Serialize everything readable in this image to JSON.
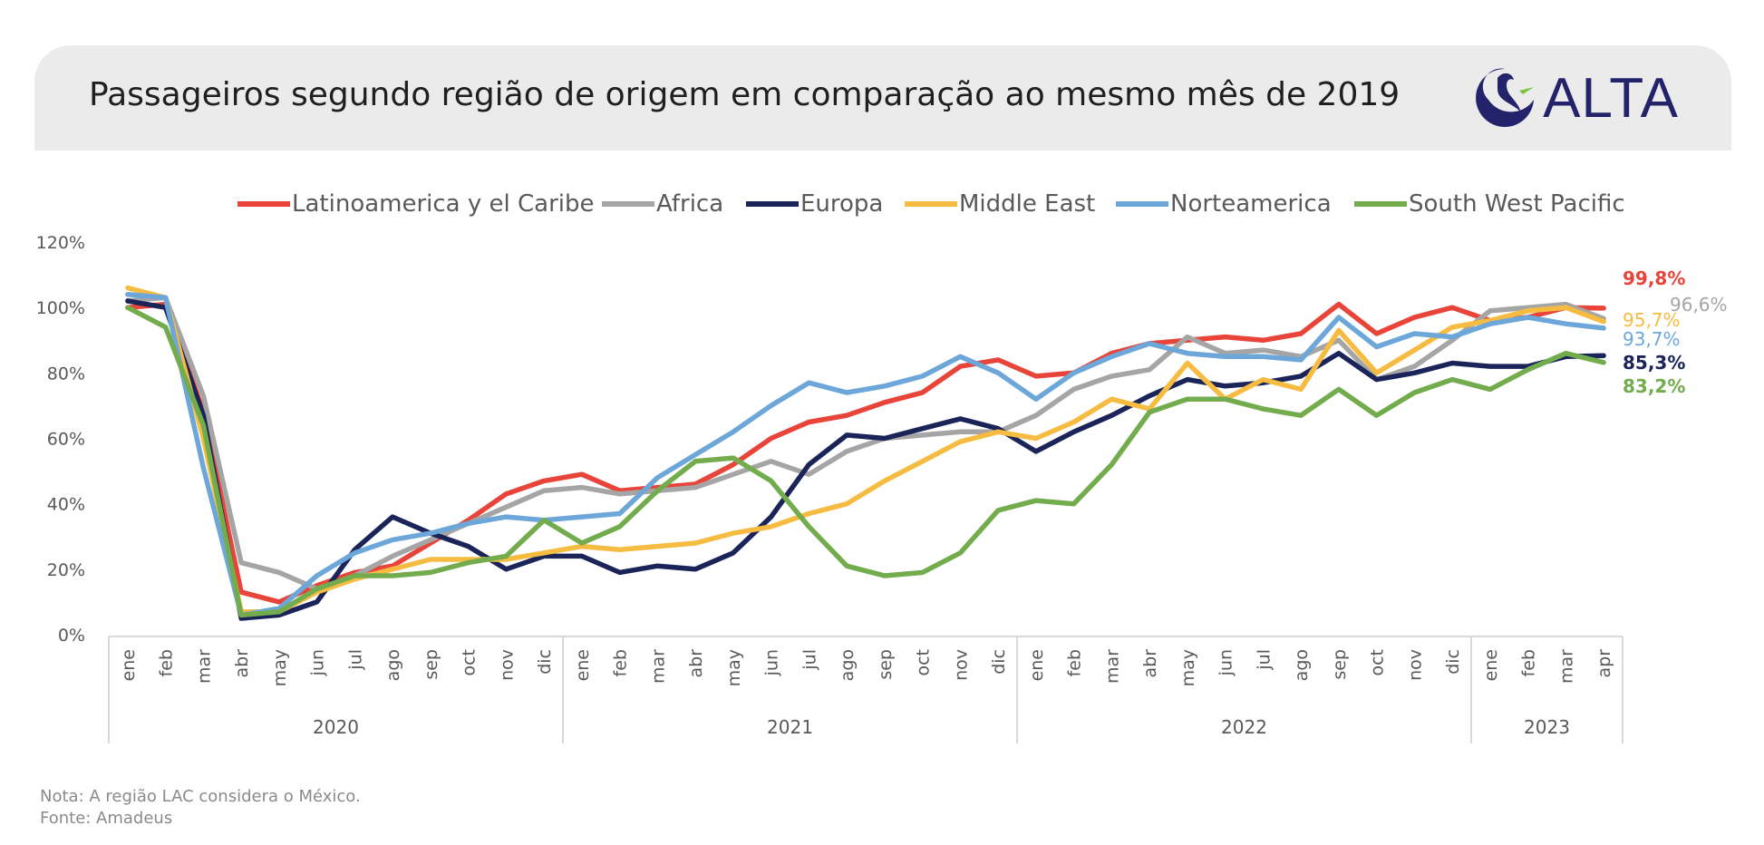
{
  "header": {
    "title": "Passageiros segundo região de origem em comparação ao mesmo mês de 2019",
    "logo_text": "ALTA",
    "logo_color": "#23236b"
  },
  "footer": {
    "note": "Nota: A região LAC considera o México.",
    "source": "Fonte: Amadeus"
  },
  "chart_data": {
    "type": "line",
    "ylim": [
      0,
      120
    ],
    "yticks": [
      "0%",
      "20%",
      "40%",
      "60%",
      "80%",
      "100%",
      "120%"
    ],
    "grid": false,
    "legend_position": "top",
    "categories": [
      "ene",
      "feb",
      "mar",
      "abr",
      "may",
      "jun",
      "jul",
      "ago",
      "sep",
      "oct",
      "nov",
      "dic",
      "ene",
      "feb",
      "mar",
      "abr",
      "may",
      "jun",
      "jul",
      "ago",
      "sep",
      "oct",
      "nov",
      "dic",
      "ene",
      "feb",
      "mar",
      "abr",
      "may",
      "jun",
      "jul",
      "ago",
      "sep",
      "oct",
      "nov",
      "dic",
      "ene",
      "feb",
      "mar",
      "apr"
    ],
    "years": [
      {
        "label": "2020",
        "count": 12
      },
      {
        "label": "2021",
        "count": 12
      },
      {
        "label": "2022",
        "count": 12
      },
      {
        "label": "2023",
        "count": 4
      }
    ],
    "series": [
      {
        "name": "Latinoamerica y el Caribe",
        "color": "#e8443a",
        "end_label": "99,8%",
        "values": [
          100,
          101,
          68,
          13,
          10,
          15,
          19,
          21,
          28,
          35,
          43,
          47,
          49,
          44,
          45,
          46,
          52,
          60,
          65,
          67,
          71,
          74,
          82,
          84,
          79,
          80,
          86,
          89,
          90,
          91,
          90,
          92,
          101,
          92,
          97,
          100,
          96,
          97,
          100,
          99.8
        ]
      },
      {
        "name": "Africa",
        "color": "#a5a5a5",
        "end_label": "96,6%",
        "values": [
          102,
          103,
          73,
          22,
          19,
          14,
          18,
          24,
          29,
          34,
          39,
          44,
          45,
          43,
          44,
          45,
          49,
          53,
          49,
          56,
          60,
          61,
          62,
          62,
          67,
          75,
          79,
          81,
          91,
          86,
          87,
          85,
          90,
          78,
          82,
          90,
          99,
          100,
          101,
          96.6
        ]
      },
      {
        "name": "Europa",
        "color": "#1b2458",
        "end_label": "85,3%",
        "values": [
          102,
          100,
          67,
          5,
          6,
          10,
          26,
          36,
          31,
          27,
          20,
          24,
          24,
          19,
          21,
          20,
          25,
          36,
          52,
          61,
          60,
          63,
          66,
          63,
          56,
          62,
          67,
          73,
          78,
          76,
          77,
          79,
          86,
          78,
          80,
          83,
          82,
          82,
          85,
          85.3
        ]
      },
      {
        "name": "Middle East",
        "color": "#f6bc41",
        "end_label": "95,7%",
        "values": [
          106,
          103,
          60,
          7,
          7,
          13,
          17,
          20,
          23,
          23,
          23,
          25,
          27,
          26,
          27,
          28,
          31,
          33,
          37,
          40,
          47,
          53,
          59,
          62,
          60,
          65,
          72,
          69,
          83,
          72,
          78,
          75,
          93,
          80,
          87,
          94,
          96,
          99,
          100,
          95.7
        ]
      },
      {
        "name": "Norteamerica",
        "color": "#6da7d9",
        "end_label": "93,7%",
        "values": [
          104,
          103,
          51,
          6,
          8,
          18,
          25,
          29,
          31,
          34,
          36,
          35,
          36,
          37,
          48,
          55,
          62,
          70,
          77,
          74,
          76,
          79,
          85,
          80,
          72,
          80,
          85,
          89,
          86,
          85,
          85,
          84,
          97,
          88,
          92,
          91,
          95,
          97,
          95,
          93.7
        ]
      },
      {
        "name": "South West Pacific",
        "color": "#72ac4d",
        "end_label": "83,2%",
        "values": [
          100,
          94,
          64,
          6,
          7,
          14,
          18,
          18,
          19,
          22,
          24,
          35,
          28,
          33,
          44,
          53,
          54,
          47,
          33,
          21,
          18,
          19,
          25,
          38,
          41,
          40,
          52,
          68,
          72,
          72,
          69,
          67,
          75,
          67,
          74,
          78,
          75,
          81,
          86,
          83.2
        ]
      }
    ]
  }
}
